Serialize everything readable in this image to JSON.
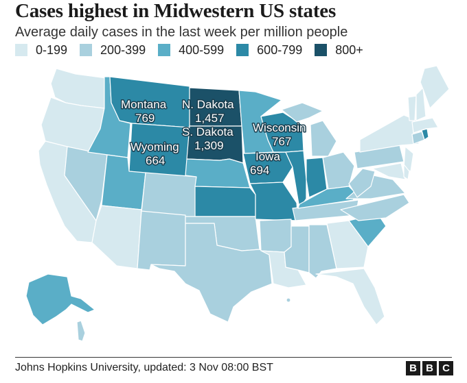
{
  "title": "Cases highest in Midwestern US states",
  "subtitle": "Average daily cases in the last week per million people",
  "legend": [
    {
      "label": "0-199",
      "color": "#d6e9ef"
    },
    {
      "label": "200-399",
      "color": "#a9d0de"
    },
    {
      "label": "400-599",
      "color": "#5aaec7"
    },
    {
      "label": "600-799",
      "color": "#2c89a6"
    },
    {
      "label": "800+",
      "color": "#1b5168"
    }
  ],
  "annotations": {
    "montana_name": "Montana",
    "montana_value": "769",
    "ndakota_name": "N. Dakota",
    "ndakota_value": "1,457",
    "sdakota_name": "S. Dakota",
    "sdakota_value": "1,309",
    "wyoming_name": "Wyoming",
    "wyoming_value": "664",
    "wisconsin_name": "Wisconsin",
    "wisconsin_value": "767",
    "iowa_name": "Iowa",
    "iowa_value": "694"
  },
  "source": "Johns Hopkins University, updated: 3 Nov 08:00 BST",
  "brand": [
    "B",
    "B",
    "C"
  ]
}
